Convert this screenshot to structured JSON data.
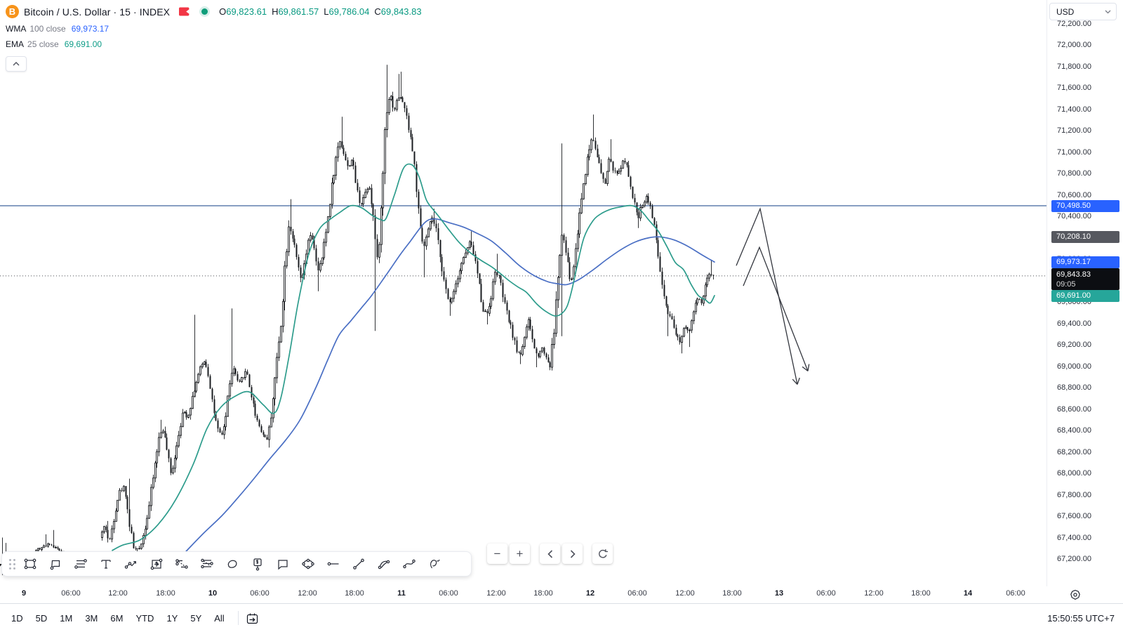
{
  "header": {
    "symbol": "Bitcoin / U.S. Dollar",
    "sep": "·",
    "interval": "15",
    "market": "INDEX",
    "ohlc": [
      {
        "label": "O",
        "value": "69,823.61"
      },
      {
        "label": "H",
        "value": "69,861.57"
      },
      {
        "label": "L",
        "value": "69,786.04"
      },
      {
        "label": "C",
        "value": "69,843.83"
      }
    ],
    "indicators": [
      {
        "name": "WMA",
        "params": "100 close",
        "value": "69,973.17",
        "color": "#2962ff"
      },
      {
        "name": "EMA",
        "params": "25 close",
        "value": "69,691.00",
        "color": "#0d9c87"
      }
    ]
  },
  "price_axis": {
    "currency": "USD",
    "tick_min": 67200,
    "tick_max": 72200,
    "tick_step": 200,
    "tags": [
      {
        "name": "horizontal-line-price-tag",
        "text": "70,498.50",
        "price": 70498.5,
        "bg": "#2962ff"
      },
      {
        "name": "drawing-anchor-price-tag",
        "text": "70,208.10",
        "price": 70208.1,
        "bg": "#56585f"
      },
      {
        "name": "wma-price-tag",
        "text": "69,973.17",
        "price": 69973.17,
        "bg": "#2962ff"
      },
      {
        "name": "last-price-tag",
        "text": "69,843.83",
        "sub": "09:05",
        "price": 69843.83,
        "bg": "#0c0e12"
      },
      {
        "name": "ema-price-tag",
        "text": "69,691.00",
        "price": 69691,
        "bg": "#26a69a"
      }
    ]
  },
  "time_axis": {
    "ticks": [
      {
        "x": 34,
        "label": "9",
        "major": true
      },
      {
        "x": 101,
        "label": "06:00"
      },
      {
        "x": 168,
        "label": "12:00"
      },
      {
        "x": 236,
        "label": "18:00"
      },
      {
        "x": 303,
        "label": "10",
        "major": true
      },
      {
        "x": 370,
        "label": "06:00"
      },
      {
        "x": 438,
        "label": "12:00"
      },
      {
        "x": 505,
        "label": "18:00"
      },
      {
        "x": 572,
        "label": "11",
        "major": true
      },
      {
        "x": 639,
        "label": "06:00"
      },
      {
        "x": 707,
        "label": "12:00"
      },
      {
        "x": 774,
        "label": "18:00"
      },
      {
        "x": 841,
        "label": "12",
        "major": true
      },
      {
        "x": 908,
        "label": "06:00"
      },
      {
        "x": 976,
        "label": "12:00"
      },
      {
        "x": 1043,
        "label": "18:00"
      },
      {
        "x": 1110,
        "label": "13",
        "major": true
      },
      {
        "x": 1177,
        "label": "06:00"
      },
      {
        "x": 1245,
        "label": "12:00"
      },
      {
        "x": 1312,
        "label": "18:00"
      },
      {
        "x": 1379,
        "label": "14",
        "major": true
      },
      {
        "x": 1447,
        "label": "06:00"
      }
    ]
  },
  "toolbar": {
    "tools": [
      "rectangle",
      "callout",
      "parallel-channel",
      "text",
      "zigzag-arrow",
      "projection",
      "fib-trend-extension",
      "fib-trend-fan",
      "freeform-shape",
      "price-label",
      "comment",
      "ellipse",
      "horizontal-ray",
      "trend-line",
      "arc",
      "curve",
      "brush"
    ]
  },
  "bottom_bar": {
    "ranges": [
      "1D",
      "5D",
      "1M",
      "3M",
      "6M",
      "YTD",
      "1Y",
      "5Y",
      "All"
    ],
    "clock": "15:50:55 UTC+7"
  },
  "chart_data": {
    "type": "candlestick",
    "title": "Bitcoin / U.S. Dollar",
    "interval_minutes": 15,
    "ylim": [
      67100,
      72300
    ],
    "grid": false,
    "mapping": {
      "p0": 70498.5,
      "y0": 293,
      "ppp": 0.1525,
      "candle_step": 2.8
    },
    "horizontal_line_price": 70498.5,
    "last_price": 69843.83,
    "last_price_line_style": "dotted",
    "price_path": [
      [
        145,
        67400
      ],
      [
        152,
        67520
      ],
      [
        158,
        67340
      ],
      [
        165,
        67600
      ],
      [
        172,
        67820
      ],
      [
        180,
        67880
      ],
      [
        186,
        67560
      ],
      [
        193,
        67300
      ],
      [
        200,
        67280
      ],
      [
        207,
        67430
      ],
      [
        214,
        67650
      ],
      [
        221,
        67980
      ],
      [
        228,
        68300
      ],
      [
        234,
        68430
      ],
      [
        240,
        68230
      ],
      [
        246,
        67980
      ],
      [
        252,
        68180
      ],
      [
        258,
        68420
      ],
      [
        264,
        68580
      ],
      [
        270,
        68520
      ],
      [
        276,
        68700
      ],
      [
        282,
        68850
      ],
      [
        288,
        68980
      ],
      [
        294,
        69060
      ],
      [
        300,
        68900
      ],
      [
        306,
        68620
      ],
      [
        312,
        68410
      ],
      [
        318,
        68340
      ],
      [
        324,
        68520
      ],
      [
        330,
        68880
      ],
      [
        336,
        68980
      ],
      [
        342,
        68820
      ],
      [
        348,
        68900
      ],
      [
        354,
        68960
      ],
      [
        360,
        68740
      ],
      [
        366,
        68560
      ],
      [
        372,
        68440
      ],
      [
        378,
        68350
      ],
      [
        384,
        68320
      ],
      [
        390,
        68620
      ],
      [
        396,
        69000
      ],
      [
        402,
        69350
      ],
      [
        408,
        69900
      ],
      [
        414,
        70340
      ],
      [
        420,
        70190
      ],
      [
        426,
        69960
      ],
      [
        432,
        69780
      ],
      [
        438,
        70020
      ],
      [
        444,
        70230
      ],
      [
        450,
        70120
      ],
      [
        456,
        69870
      ],
      [
        462,
        70030
      ],
      [
        468,
        70300
      ],
      [
        474,
        70620
      ],
      [
        480,
        70900
      ],
      [
        486,
        71120
      ],
      [
        492,
        71000
      ],
      [
        498,
        70850
      ],
      [
        504,
        70940
      ],
      [
        510,
        70680
      ],
      [
        516,
        70500
      ],
      [
        522,
        70610
      ],
      [
        528,
        70700
      ],
      [
        534,
        70420
      ],
      [
        540,
        69950
      ],
      [
        546,
        70500
      ],
      [
        552,
        71350
      ],
      [
        558,
        71560
      ],
      [
        564,
        71380
      ],
      [
        570,
        71520
      ],
      [
        576,
        71480
      ],
      [
        582,
        71320
      ],
      [
        588,
        71120
      ],
      [
        594,
        70820
      ],
      [
        600,
        70300
      ],
      [
        606,
        70100
      ],
      [
        612,
        70250
      ],
      [
        618,
        70390
      ],
      [
        624,
        70260
      ],
      [
        630,
        70020
      ],
      [
        636,
        69750
      ],
      [
        642,
        69580
      ],
      [
        648,
        69680
      ],
      [
        654,
        69830
      ],
      [
        660,
        69960
      ],
      [
        666,
        70060
      ],
      [
        672,
        70160
      ],
      [
        678,
        70040
      ],
      [
        684,
        69810
      ],
      [
        690,
        69550
      ],
      [
        696,
        69480
      ],
      [
        702,
        69650
      ],
      [
        708,
        69880
      ],
      [
        714,
        69830
      ],
      [
        720,
        69620
      ],
      [
        726,
        69460
      ],
      [
        732,
        69320
      ],
      [
        738,
        69150
      ],
      [
        744,
        69110
      ],
      [
        750,
        69280
      ],
      [
        756,
        69430
      ],
      [
        762,
        69210
      ],
      [
        768,
        69080
      ],
      [
        774,
        69180
      ],
      [
        780,
        69100
      ],
      [
        786,
        68990
      ],
      [
        792,
        69350
      ],
      [
        798,
        69900
      ],
      [
        804,
        70250
      ],
      [
        810,
        70000
      ],
      [
        816,
        69760
      ],
      [
        822,
        70050
      ],
      [
        828,
        70420
      ],
      [
        834,
        70720
      ],
      [
        840,
        70960
      ],
      [
        846,
        71150
      ],
      [
        852,
        71020
      ],
      [
        858,
        70820
      ],
      [
        864,
        70680
      ],
      [
        870,
        70940
      ],
      [
        876,
        70840
      ],
      [
        882,
        70780
      ],
      [
        888,
        70890
      ],
      [
        894,
        70930
      ],
      [
        900,
        70680
      ],
      [
        906,
        70520
      ],
      [
        912,
        70400
      ],
      [
        918,
        70520
      ],
      [
        924,
        70590
      ],
      [
        930,
        70470
      ],
      [
        936,
        70240
      ],
      [
        942,
        69940
      ],
      [
        948,
        69640
      ],
      [
        954,
        69480
      ],
      [
        960,
        69420
      ],
      [
        966,
        69280
      ],
      [
        972,
        69230
      ],
      [
        978,
        69400
      ],
      [
        984,
        69320
      ],
      [
        990,
        69490
      ],
      [
        996,
        69630
      ],
      [
        1002,
        69590
      ],
      [
        1008,
        69760
      ],
      [
        1014,
        69880
      ],
      [
        1017,
        69843.83
      ]
    ],
    "spikes": [
      [
        153,
        "h",
        67555
      ],
      [
        183,
        "h",
        67950
      ],
      [
        196,
        "l",
        67190
      ],
      [
        228,
        "h",
        68500
      ],
      [
        277,
        "h",
        69480
      ],
      [
        277,
        "l",
        68830
      ],
      [
        330,
        "h",
        69540
      ],
      [
        383,
        "l",
        68240
      ],
      [
        413,
        "h",
        70560
      ],
      [
        452,
        "l",
        69700
      ],
      [
        488,
        "h",
        71330
      ],
      [
        534,
        "l",
        69330
      ],
      [
        551,
        "h",
        71815
      ],
      [
        567,
        "h",
        71730
      ],
      [
        572,
        "h",
        71750
      ],
      [
        603,
        "l",
        69830
      ],
      [
        618,
        "h",
        70470
      ],
      [
        640,
        "l",
        69470
      ],
      [
        672,
        "h",
        70260
      ],
      [
        694,
        "l",
        69390
      ],
      [
        709,
        "h",
        70050
      ],
      [
        741,
        "l",
        69020
      ],
      [
        765,
        "l",
        68990
      ],
      [
        787,
        "l",
        68985
      ],
      [
        801,
        "h",
        71080
      ],
      [
        801,
        "l",
        69280
      ],
      [
        846,
        "h",
        71350
      ],
      [
        871,
        "h",
        71120
      ],
      [
        910,
        "l",
        70290
      ],
      [
        951,
        "l",
        69280
      ],
      [
        970,
        "l",
        69120
      ],
      [
        981,
        "l",
        69180
      ],
      [
        1013,
        "h",
        69990
      ]
    ],
    "pre_gap_clusters": [
      {
        "path": [
          [
            0,
            67150
          ],
          [
            12,
            67200
          ]
        ],
        "spikes": [
          [
            2,
            "h",
            67400
          ],
          [
            2,
            "l",
            67050
          ],
          [
            8,
            "h",
            67350
          ],
          [
            8,
            "l",
            67060
          ]
        ]
      },
      {
        "path": [
          [
            48,
            67240
          ],
          [
            56,
            67290
          ],
          [
            64,
            67310
          ],
          [
            72,
            67350
          ],
          [
            80,
            67310
          ],
          [
            90,
            67270
          ]
        ],
        "spikes": [
          [
            66,
            "h",
            67430
          ],
          [
            75,
            "h",
            67470
          ],
          [
            58,
            "l",
            67180
          ]
        ]
      }
    ],
    "wma_100": [
      [
        255,
        67200
      ],
      [
        270,
        67305
      ],
      [
        290,
        67440
      ],
      [
        317,
        67610
      ],
      [
        340,
        67780
      ],
      [
        363,
        67960
      ],
      [
        385,
        68140
      ],
      [
        407,
        68310
      ],
      [
        428,
        68505
      ],
      [
        450,
        68800
      ],
      [
        467,
        69060
      ],
      [
        483,
        69290
      ],
      [
        500,
        69425
      ],
      [
        515,
        69545
      ],
      [
        530,
        69665
      ],
      [
        550,
        69850
      ],
      [
        570,
        70040
      ],
      [
        585,
        70170
      ],
      [
        605,
        70340
      ],
      [
        620,
        70376
      ],
      [
        640,
        70340
      ],
      [
        660,
        70300
      ],
      [
        680,
        70240
      ],
      [
        700,
        70170
      ],
      [
        720,
        70060
      ],
      [
        740,
        69940
      ],
      [
        760,
        69850
      ],
      [
        780,
        69790
      ],
      [
        795,
        69770
      ],
      [
        808,
        69763
      ],
      [
        825,
        69810
      ],
      [
        845,
        69900
      ],
      [
        865,
        70000
      ],
      [
        885,
        70090
      ],
      [
        905,
        70160
      ],
      [
        925,
        70200
      ],
      [
        940,
        70208
      ],
      [
        960,
        70180
      ],
      [
        980,
        70120
      ],
      [
        1000,
        70040
      ],
      [
        1012,
        69995
      ],
      [
        1018,
        69973
      ]
    ],
    "ema_25": [
      [
        160,
        67280
      ],
      [
        175,
        67330
      ],
      [
        200,
        67380
      ],
      [
        225,
        67520
      ],
      [
        250,
        67750
      ],
      [
        275,
        68080
      ],
      [
        295,
        68420
      ],
      [
        315,
        68620
      ],
      [
        335,
        68720
      ],
      [
        355,
        68760
      ],
      [
        375,
        68640
      ],
      [
        390,
        68560
      ],
      [
        400,
        68700
      ],
      [
        412,
        69100
      ],
      [
        425,
        69600
      ],
      [
        440,
        70050
      ],
      [
        455,
        70280
      ],
      [
        470,
        70370
      ],
      [
        485,
        70440
      ],
      [
        500,
        70500
      ],
      [
        515,
        70480
      ],
      [
        530,
        70410
      ],
      [
        542,
        70370
      ],
      [
        550,
        70380
      ],
      [
        562,
        70600
      ],
      [
        575,
        70850
      ],
      [
        587,
        70880
      ],
      [
        597,
        70770
      ],
      [
        607,
        70560
      ],
      [
        615,
        70480
      ],
      [
        625,
        70400
      ],
      [
        640,
        70270
      ],
      [
        655,
        70150
      ],
      [
        670,
        70060
      ],
      [
        685,
        69990
      ],
      [
        700,
        69930
      ],
      [
        712,
        69870
      ],
      [
        725,
        69800
      ],
      [
        738,
        69740
      ],
      [
        750,
        69690
      ],
      [
        765,
        69580
      ],
      [
        778,
        69510
      ],
      [
        790,
        69470
      ],
      [
        800,
        69490
      ],
      [
        808,
        69560
      ],
      [
        815,
        69720
      ],
      [
        822,
        69930
      ],
      [
        832,
        70200
      ],
      [
        845,
        70360
      ],
      [
        858,
        70430
      ],
      [
        872,
        70470
      ],
      [
        886,
        70490
      ],
      [
        900,
        70500
      ],
      [
        912,
        70460
      ],
      [
        925,
        70360
      ],
      [
        938,
        70260
      ],
      [
        950,
        70120
      ],
      [
        962,
        69970
      ],
      [
        974,
        69900
      ],
      [
        985,
        69760
      ],
      [
        995,
        69660
      ],
      [
        1005,
        69620
      ],
      [
        1012,
        69590
      ],
      [
        1018,
        69660
      ]
    ],
    "forecast_arrows": [
      [
        [
          1049,
          69940
        ],
        [
          1083,
          70470
        ],
        [
          1136,
          68830
        ]
      ],
      [
        [
          1059,
          69750
        ],
        [
          1082,
          70110
        ],
        [
          1151,
          68955
        ]
      ]
    ],
    "colors": {
      "candle": "#1a1c20",
      "wma_line": "#4a6fc4",
      "ema_line": "#2d9c8c",
      "horizontal_line": "#41659e",
      "last_price_dotted": "#4a4d54",
      "arrow": "#33363e",
      "accent_blue": "#2962ff",
      "accent_teal": "#26a69a",
      "up_green": "#089981",
      "flag_red": "#f23645",
      "btc_orange": "#f7931a"
    }
  }
}
